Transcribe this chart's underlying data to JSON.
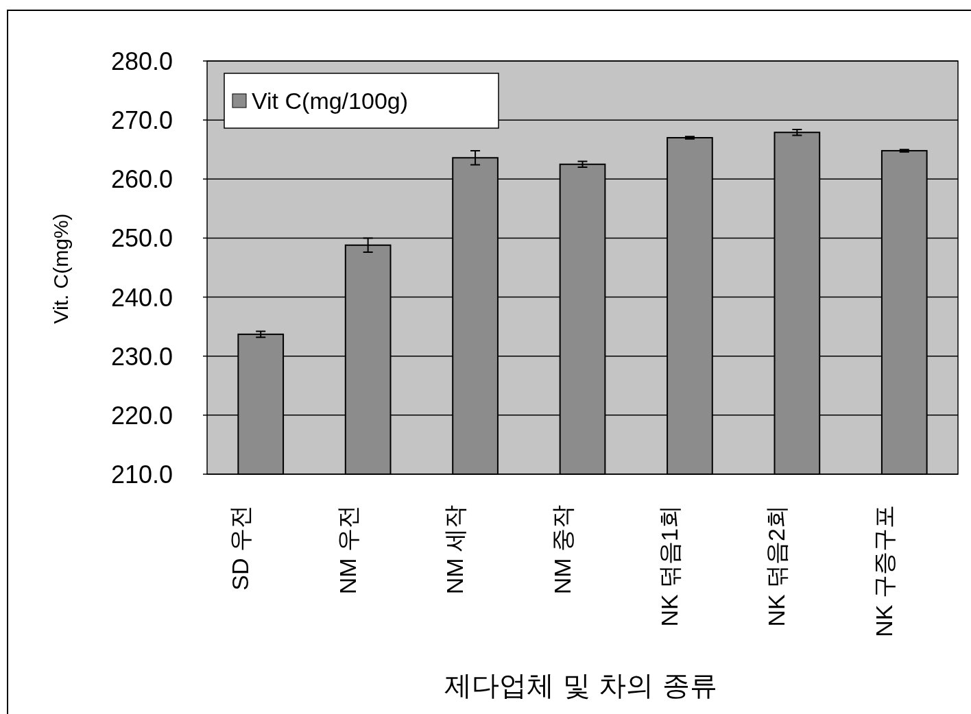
{
  "chart_data": {
    "type": "bar",
    "xlabel": "제다업체 및 차의 종류",
    "ylabel": "Vit. C(mg%)",
    "categories": [
      "SD 우전",
      "NM 우전",
      "NM 세작",
      "NM 중작",
      "NK 덖음1회",
      "NK 덖음2회",
      "NK 구증구포"
    ],
    "series": [
      {
        "name": "Vit C(mg/100g)",
        "color": "#8c8c8c",
        "values": [
          233.7,
          248.8,
          263.6,
          262.5,
          267.0,
          267.9,
          264.8
        ],
        "errors": [
          0.5,
          1.2,
          1.2,
          0.5,
          0.2,
          0.5,
          0.2
        ]
      }
    ],
    "ylim": [
      210,
      280
    ],
    "yticks": [
      {
        "value": 210,
        "label": "210.0"
      },
      {
        "value": 220,
        "label": "220.0"
      },
      {
        "value": 230,
        "label": "230.0"
      },
      {
        "value": 240,
        "label": "240.0"
      },
      {
        "value": 250,
        "label": "250.0"
      },
      {
        "value": 260,
        "label": "260.0"
      },
      {
        "value": 270,
        "label": "270.0"
      },
      {
        "value": 280,
        "label": "280.0"
      }
    ],
    "grid": "y",
    "legend": "top left"
  }
}
